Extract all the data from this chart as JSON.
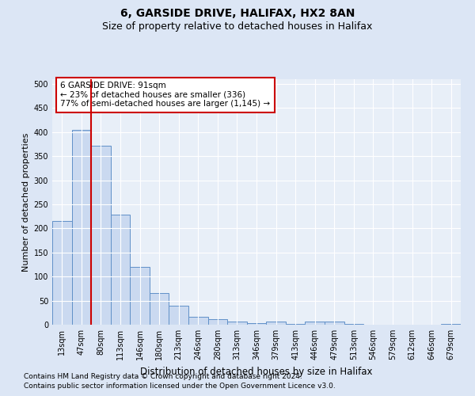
{
  "title": "6, GARSIDE DRIVE, HALIFAX, HX2 8AN",
  "subtitle": "Size of property relative to detached houses in Halifax",
  "xlabel": "Distribution of detached houses by size in Halifax",
  "ylabel": "Number of detached properties",
  "categories": [
    "13sqm",
    "47sqm",
    "80sqm",
    "113sqm",
    "146sqm",
    "180sqm",
    "213sqm",
    "246sqm",
    "280sqm",
    "313sqm",
    "346sqm",
    "379sqm",
    "413sqm",
    "446sqm",
    "479sqm",
    "513sqm",
    "546sqm",
    "579sqm",
    "612sqm",
    "646sqm",
    "679sqm"
  ],
  "values": [
    215,
    405,
    372,
    228,
    120,
    65,
    40,
    17,
    12,
    7,
    3,
    7,
    2,
    6,
    7,
    1,
    0,
    0,
    0,
    0,
    1
  ],
  "bar_color": "#cad9f0",
  "bar_edge_color": "#6090c8",
  "vline_color": "#cc0000",
  "vline_x_index": 2,
  "annotation_text": "6 GARSIDE DRIVE: 91sqm\n← 23% of detached houses are smaller (336)\n77% of semi-detached houses are larger (1,145) →",
  "annotation_box_color": "#ffffff",
  "annotation_box_edge": "#cc0000",
  "ylim": [
    0,
    510
  ],
  "yticks": [
    0,
    50,
    100,
    150,
    200,
    250,
    300,
    350,
    400,
    450,
    500
  ],
  "background_color": "#dce6f5",
  "plot_bg_color": "#e8eff8",
  "grid_color": "#ffffff",
  "footer_line1": "Contains HM Land Registry data © Crown copyright and database right 2024.",
  "footer_line2": "Contains public sector information licensed under the Open Government Licence v3.0.",
  "title_fontsize": 10,
  "subtitle_fontsize": 9,
  "xlabel_fontsize": 8.5,
  "ylabel_fontsize": 8,
  "tick_fontsize": 7,
  "annotation_fontsize": 7.5,
  "footer_fontsize": 6.5
}
